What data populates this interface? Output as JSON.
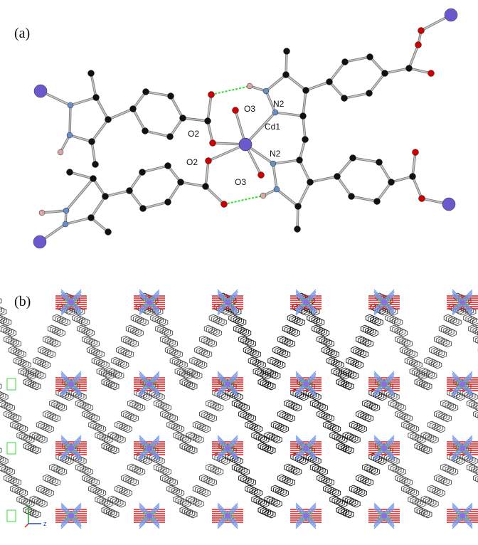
{
  "panels": {
    "a": {
      "label": "(a)"
    },
    "b": {
      "label": "(b)"
    }
  },
  "atom_labels": {
    "cd1": "Cd1",
    "n2_top": "N2",
    "n2_bottom": "N2",
    "o2_top": "O2",
    "o2_bottom": "O2",
    "o3_top": "O3",
    "o3_bottom": "O3"
  },
  "axis_labels": {
    "y": "y",
    "z": "z"
  },
  "colors": {
    "carbon": "#111111",
    "oxygen": "#cc0000",
    "nitrogen": "#6a8fc8",
    "hydrogen": "#d8a8a8",
    "cadmium": "#6a5acd",
    "bond": "#a9a9a9",
    "hbond": "#33dd33",
    "framework_ring": "#2b2b2b",
    "framework_n": "#7a9ae8",
    "framework_o": "#e01818",
    "framework_cd": "#8a70e0"
  }
}
